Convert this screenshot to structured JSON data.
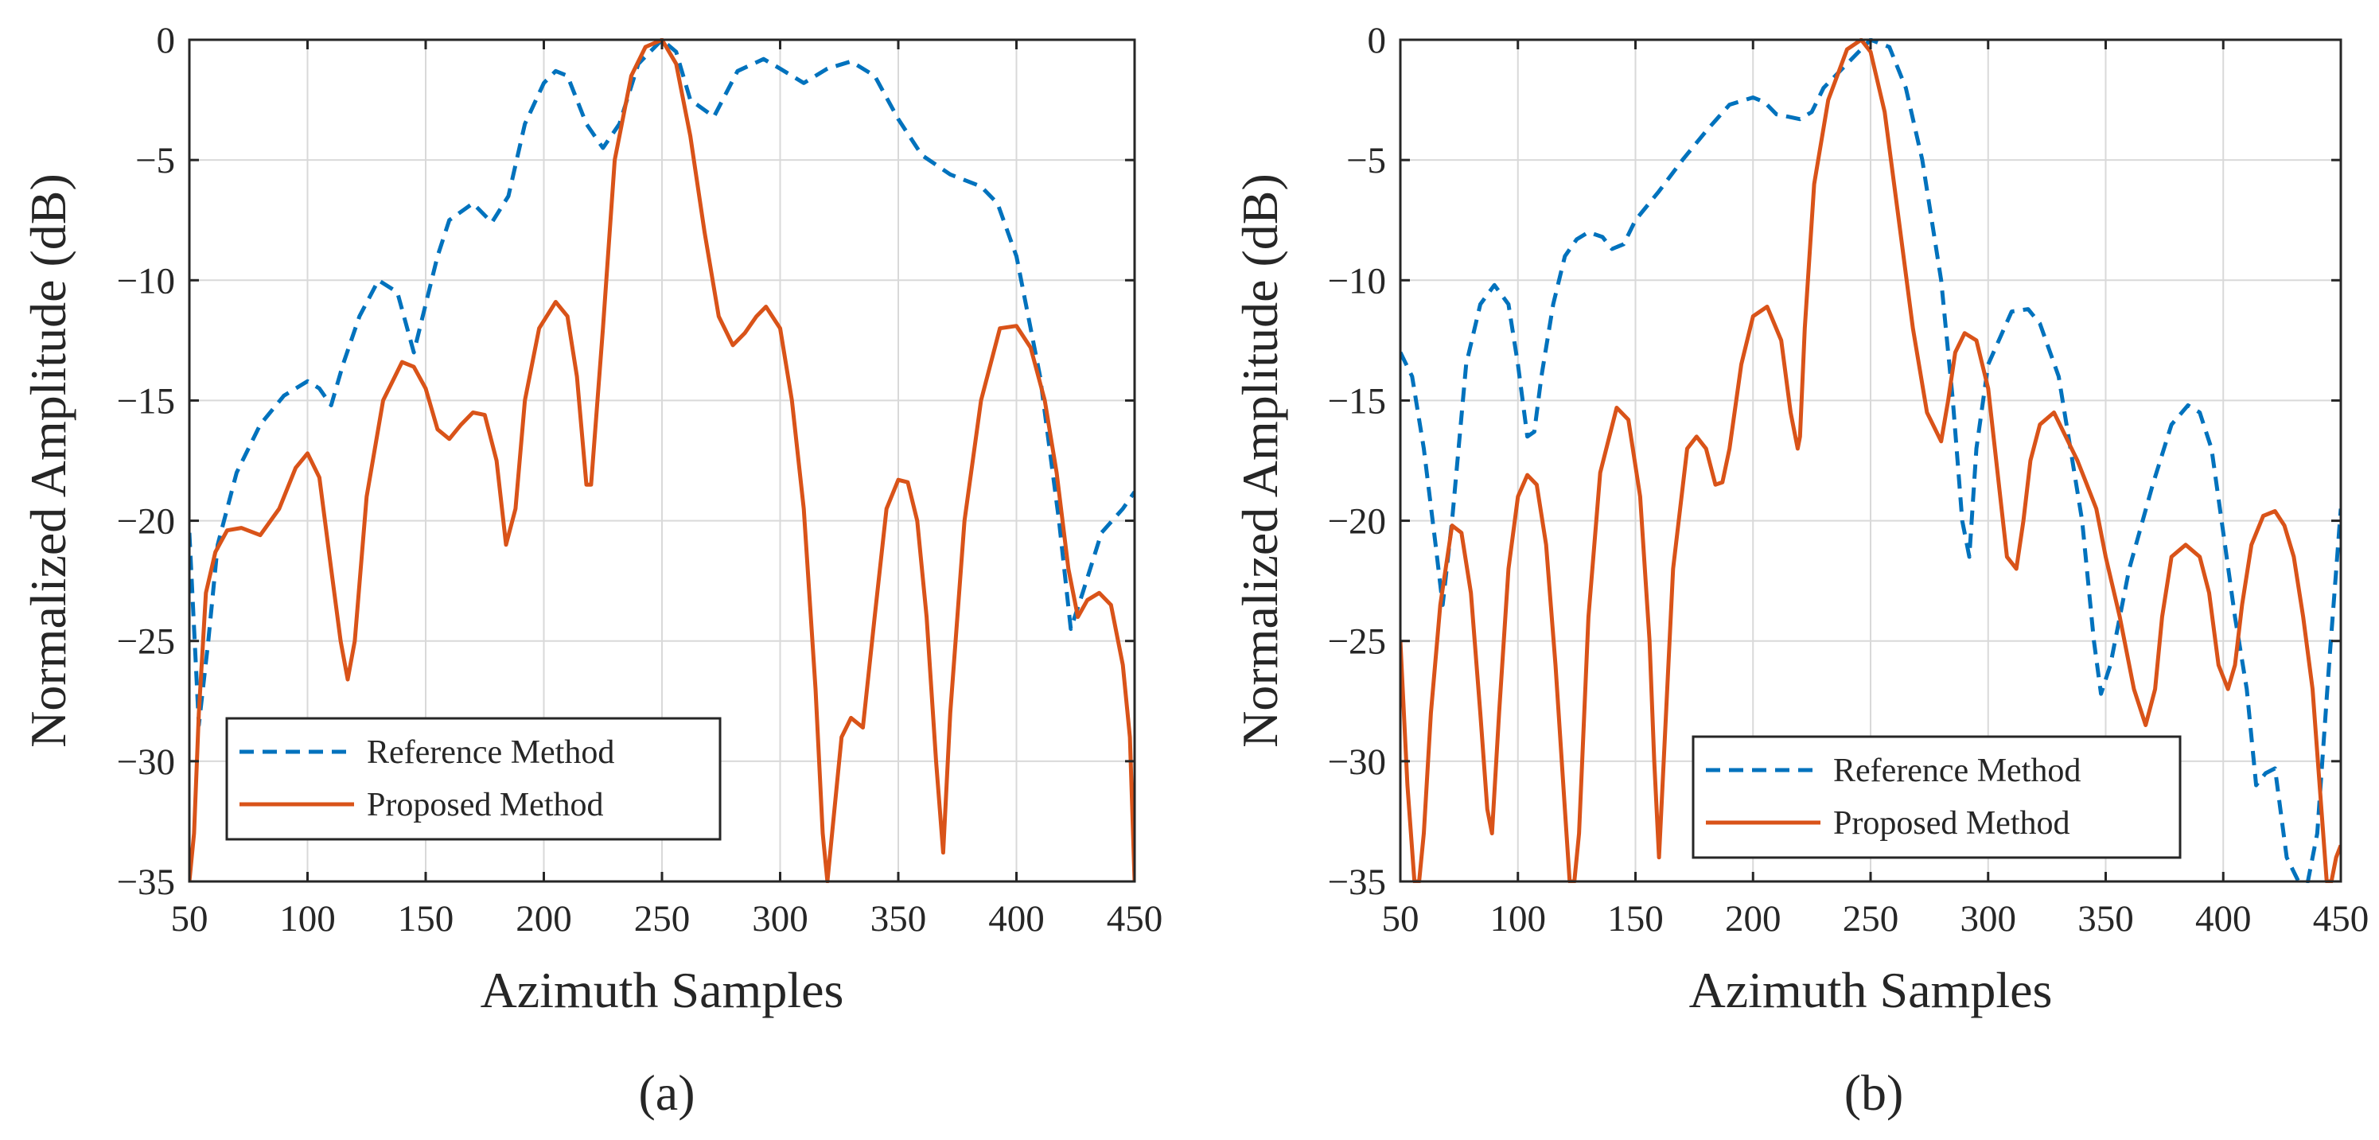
{
  "chart_data": [
    {
      "type": "line",
      "panel_label": "(a)",
      "xlabel": "Azimuth Samples",
      "ylabel": "Normalized Amplitude (dB)",
      "xlim": [
        50,
        450
      ],
      "ylim": [
        -35,
        0
      ],
      "xticks": [
        50,
        100,
        150,
        200,
        250,
        300,
        350,
        400,
        450
      ],
      "yticks": [
        0,
        -5,
        -10,
        -15,
        -20,
        -25,
        -30,
        -35
      ],
      "grid": true,
      "legend_position": "bottom-left",
      "series": [
        {
          "name": "Reference Method",
          "style": "dashed",
          "color": "#0072BD",
          "x": [
            50,
            54,
            58,
            62,
            66,
            70,
            80,
            90,
            100,
            105,
            110,
            115,
            122,
            130,
            138,
            145,
            155,
            160,
            170,
            178,
            185,
            192,
            200,
            205,
            210,
            218,
            225,
            232,
            240,
            250,
            256,
            262,
            272,
            282,
            293,
            300,
            310,
            320,
            330,
            340,
            350,
            360,
            372,
            385,
            392,
            400,
            410,
            418,
            423,
            428,
            436,
            445,
            450
          ],
          "y": [
            -20.5,
            -28.5,
            -25,
            -21,
            -19.5,
            -18,
            -16,
            -14.8,
            -14.2,
            -14.5,
            -15.2,
            -13.5,
            -11.5,
            -10,
            -10.5,
            -13,
            -9,
            -7.5,
            -6.8,
            -7.6,
            -6.5,
            -3.5,
            -1.8,
            -1.3,
            -1.5,
            -3.5,
            -4.5,
            -3.5,
            -1,
            0,
            -0.5,
            -2.5,
            -3.2,
            -1.3,
            -0.8,
            -1.2,
            -1.8,
            -1.2,
            -0.9,
            -1.5,
            -3.3,
            -4.8,
            -5.6,
            -6.1,
            -6.8,
            -9,
            -14,
            -20,
            -24.5,
            -23,
            -20.5,
            -19.5,
            -18.8
          ]
        },
        {
          "name": "Proposed Method",
          "style": "solid",
          "color": "#D95319",
          "x": [
            50,
            52,
            54,
            57,
            61,
            66,
            72,
            80,
            88,
            95,
            100,
            105,
            110,
            114,
            117,
            120,
            125,
            132,
            140,
            145,
            150,
            155,
            160,
            165,
            170,
            175,
            180,
            184,
            188,
            192,
            198,
            205,
            210,
            214,
            218,
            220,
            225,
            230,
            237,
            243,
            250,
            256,
            262,
            268,
            274,
            280,
            285,
            290,
            294,
            300,
            305,
            310,
            315,
            318,
            320,
            322,
            326,
            330,
            335,
            340,
            345,
            350,
            354,
            358,
            362,
            366,
            369,
            372,
            378,
            385,
            393,
            400,
            406,
            412,
            417,
            422,
            426,
            430,
            435,
            440,
            445,
            448,
            450
          ],
          "y": [
            -35,
            -33,
            -28,
            -23,
            -21.3,
            -20.4,
            -20.3,
            -20.6,
            -19.5,
            -17.8,
            -17.2,
            -18.2,
            -22,
            -25,
            -26.6,
            -25,
            -19,
            -15,
            -13.4,
            -13.6,
            -14.5,
            -16.2,
            -16.6,
            -16,
            -15.5,
            -15.6,
            -17.5,
            -21,
            -19.5,
            -15,
            -12,
            -10.9,
            -11.5,
            -14,
            -18.5,
            -18.5,
            -12,
            -5,
            -1.5,
            -0.3,
            0,
            -1,
            -4,
            -8,
            -11.5,
            -12.7,
            -12.2,
            -11.5,
            -11.1,
            -12,
            -15,
            -19.5,
            -27,
            -33,
            -35,
            -33,
            -29,
            -28.2,
            -28.6,
            -24,
            -19.5,
            -18.3,
            -18.4,
            -20,
            -24,
            -30,
            -33.8,
            -28,
            -20,
            -15,
            -12,
            -11.9,
            -12.8,
            -15,
            -18,
            -22,
            -24,
            -23.3,
            -23,
            -23.5,
            -26,
            -29,
            -35
          ]
        }
      ]
    },
    {
      "type": "line",
      "panel_label": "(b)",
      "xlabel": "Azimuth Samples",
      "ylabel": "Normalized Amplitude (dB)",
      "xlim": [
        50,
        450
      ],
      "ylim": [
        -35,
        0
      ],
      "xticks": [
        50,
        100,
        150,
        200,
        250,
        300,
        350,
        400,
        450
      ],
      "yticks": [
        0,
        -5,
        -10,
        -15,
        -20,
        -25,
        -30,
        -35
      ],
      "grid": true,
      "legend_position": "bottom-center",
      "series": [
        {
          "name": "Reference Method",
          "style": "dashed",
          "color": "#0072BD",
          "x": [
            50,
            55,
            60,
            65,
            68,
            72,
            78,
            84,
            90,
            96,
            100,
            104,
            107,
            110,
            115,
            120,
            125,
            130,
            136,
            140,
            145,
            150,
            160,
            170,
            180,
            190,
            200,
            205,
            210,
            215,
            220,
            225,
            230,
            240,
            250,
            258,
            265,
            272,
            280,
            285,
            289,
            292,
            295,
            300,
            310,
            317,
            322,
            330,
            335,
            340,
            345,
            348,
            352,
            360,
            370,
            378,
            385,
            390,
            395,
            400,
            405,
            410,
            414,
            418,
            422,
            427,
            432,
            436,
            440,
            445,
            450
          ],
          "y": [
            -13,
            -14,
            -17,
            -21,
            -23.5,
            -20,
            -13.5,
            -11,
            -10.2,
            -11,
            -13.5,
            -16.5,
            -16.3,
            -14,
            -11,
            -9,
            -8.3,
            -8,
            -8.2,
            -8.7,
            -8.5,
            -7.5,
            -6.3,
            -5,
            -3.8,
            -2.7,
            -2.4,
            -2.6,
            -3.1,
            -3.2,
            -3.3,
            -3,
            -2,
            -1,
            0,
            -0.3,
            -2,
            -5,
            -10,
            -15,
            -20,
            -21.5,
            -17,
            -13.5,
            -11.3,
            -11.2,
            -11.8,
            -14,
            -17,
            -20,
            -25,
            -27.2,
            -26,
            -22,
            -18.5,
            -16,
            -15.2,
            -15.5,
            -17,
            -20.5,
            -24,
            -27,
            -31,
            -30.5,
            -30.3,
            -34,
            -35,
            -35,
            -33,
            -26,
            -19.5
          ]
        },
        {
          "name": "Proposed Method",
          "style": "solid",
          "color": "#D95319",
          "x": [
            50,
            53,
            56,
            58,
            60,
            63,
            67,
            72,
            76,
            80,
            84,
            87,
            89,
            92,
            96,
            100,
            104,
            108,
            112,
            116,
            120,
            122,
            124,
            126,
            130,
            135,
            142,
            147,
            152,
            156,
            158,
            160,
            162,
            166,
            172,
            176,
            180,
            184,
            187,
            190,
            195,
            200,
            206,
            212,
            216,
            219,
            220,
            222,
            226,
            232,
            240,
            246,
            250,
            256,
            262,
            268,
            274,
            280,
            283,
            286,
            290,
            295,
            300,
            304,
            308,
            312,
            315,
            318,
            322,
            328,
            333,
            338,
            342,
            346,
            350,
            356,
            362,
            367,
            371,
            374,
            378,
            384,
            390,
            394,
            398,
            402,
            405,
            408,
            412,
            417,
            422,
            426,
            430,
            434,
            438,
            441,
            444,
            446,
            448,
            450
          ],
          "y": [
            -25,
            -31,
            -35,
            -35,
            -33,
            -28,
            -23.5,
            -20.2,
            -20.5,
            -23,
            -28,
            -32,
            -33,
            -28,
            -22,
            -19,
            -18.1,
            -18.5,
            -21,
            -26,
            -32,
            -35,
            -35,
            -33,
            -24,
            -18,
            -15.3,
            -15.8,
            -19,
            -25,
            -30,
            -34,
            -30,
            -22,
            -17,
            -16.5,
            -17,
            -18.5,
            -18.4,
            -17,
            -13.5,
            -11.5,
            -11.1,
            -12.5,
            -15.5,
            -17,
            -16.5,
            -12,
            -6,
            -2.5,
            -0.4,
            0,
            -0.5,
            -3,
            -7.5,
            -12,
            -15.5,
            -16.7,
            -15,
            -13,
            -12.2,
            -12.5,
            -14.5,
            -18,
            -21.5,
            -22,
            -20,
            -17.5,
            -16,
            -15.5,
            -16.5,
            -17.5,
            -18.5,
            -19.5,
            -21.5,
            -24,
            -27,
            -28.5,
            -27,
            -24,
            -21.5,
            -21,
            -21.5,
            -23,
            -26,
            -27,
            -26,
            -23.5,
            -21,
            -19.8,
            -19.6,
            -20.2,
            -21.5,
            -24,
            -27,
            -31,
            -35,
            -35,
            -34,
            -33.5
          ]
        }
      ]
    }
  ]
}
